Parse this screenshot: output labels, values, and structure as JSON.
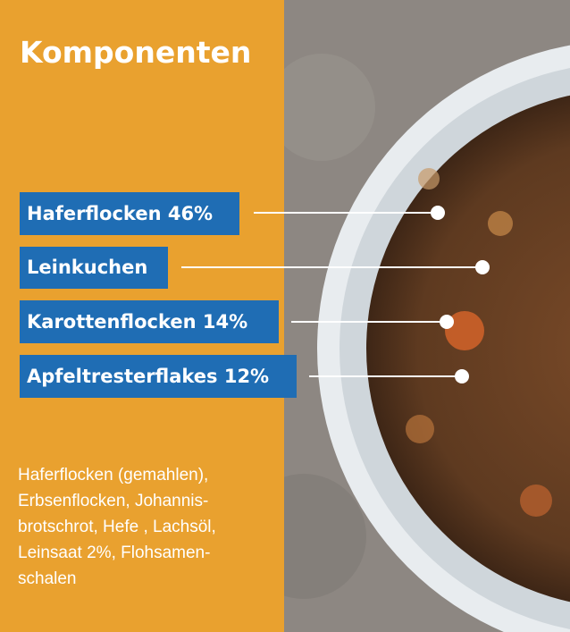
{
  "header": {
    "title": "Komponenten"
  },
  "labels": [
    "Haferflocken 46%",
    "Leinkuchen",
    "Karottenflocken 14%",
    "Apfeltresterflakes 12%"
  ],
  "description": {
    "lines": [
      "Haferflocken (gemahlen),",
      "Erbsenflocken, Johannis-",
      "brotschrot, Hefe , Lachsöl,",
      "Leinsaat 2%, Flohsamen-",
      "schalen"
    ]
  }
}
